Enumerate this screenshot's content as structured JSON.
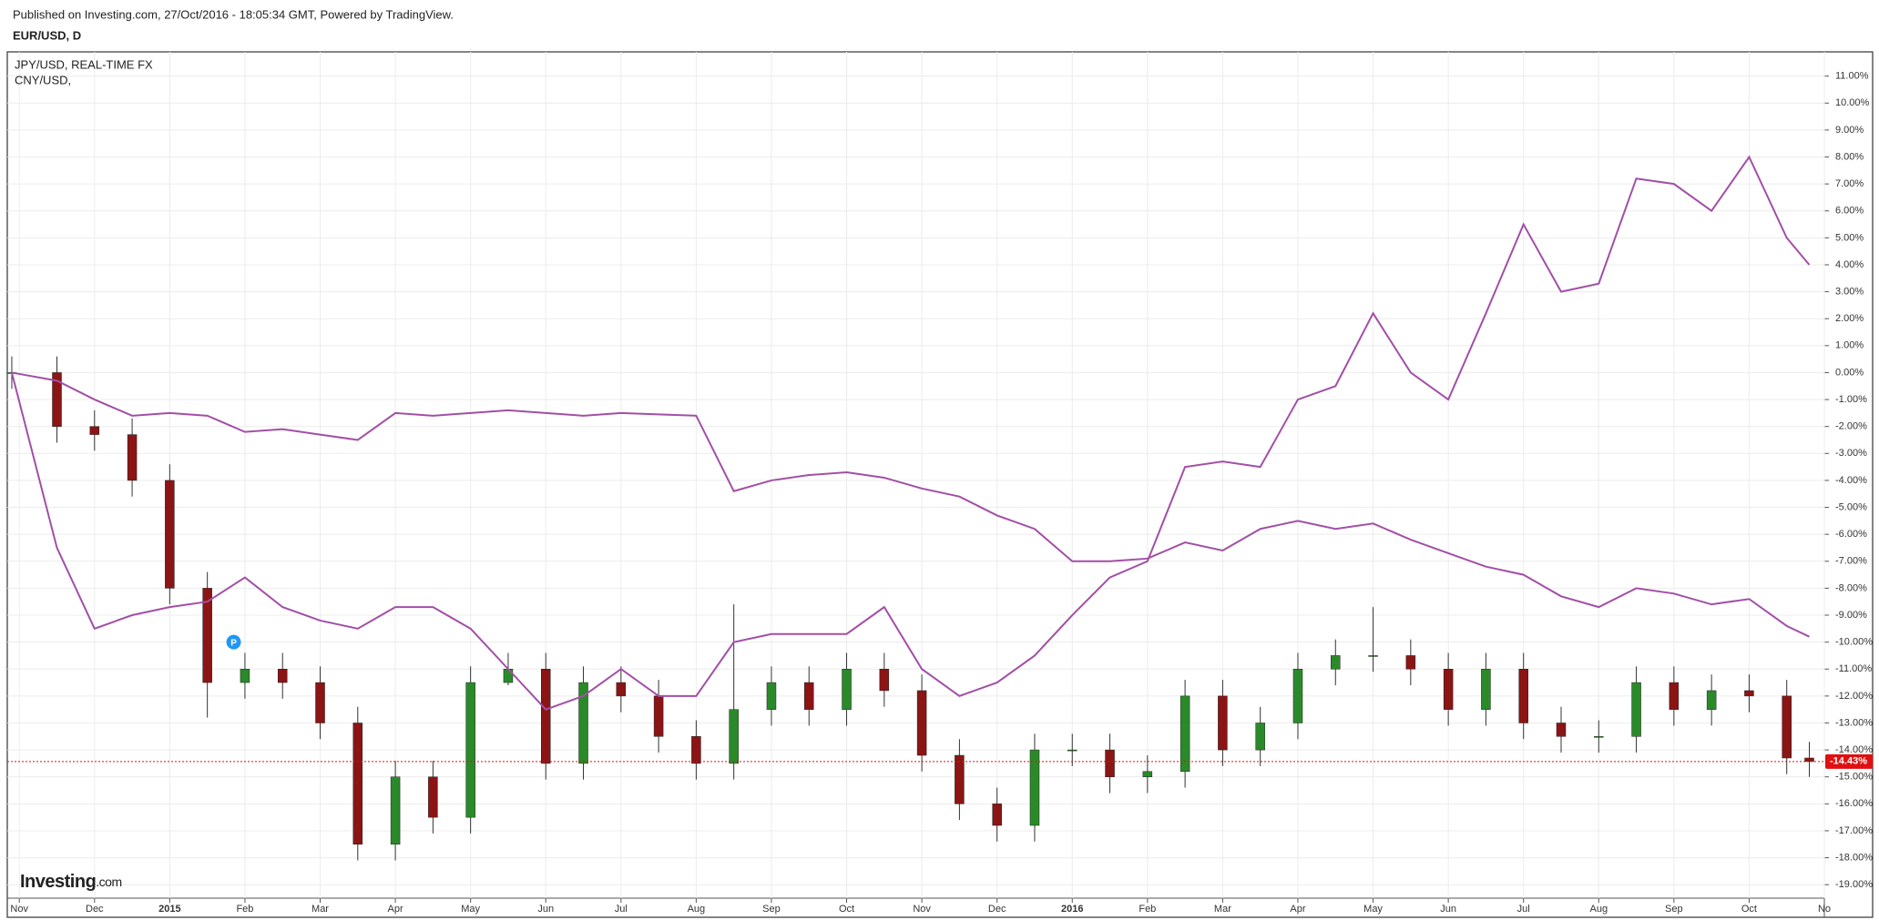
{
  "header": {
    "published": "Published on Investing.com, 27/Oct/2016 - 18:05:34 GMT, Powered by TradingView.",
    "symbol": "EUR/USD, D"
  },
  "logo": {
    "brand": "Investing",
    "suffix": ".com"
  },
  "chart_data": {
    "type": "candlestick",
    "x": [
      -0.1,
      0.5,
      1,
      1.5,
      2,
      2.5,
      3,
      3.5,
      4,
      4.5,
      5,
      5.5,
      6,
      6.5,
      7,
      7.5,
      8,
      8.5,
      9,
      9.5,
      10,
      10.5,
      11,
      11.5,
      12,
      12.5,
      13,
      13.5,
      14,
      14.5,
      15,
      15.5,
      16,
      16.5,
      17,
      17.5,
      18,
      18.5,
      19,
      19.5,
      20,
      20.5,
      21,
      21.5,
      22,
      22.5,
      23,
      23.5,
      23.8
    ],
    "xlim": [
      -0.16,
      24
    ],
    "xticks": [
      {
        "value": 0,
        "label": "Nov"
      },
      {
        "value": 1,
        "label": "Dec"
      },
      {
        "value": 2,
        "label": "2015"
      },
      {
        "value": 3,
        "label": "Feb"
      },
      {
        "value": 4,
        "label": "Mar"
      },
      {
        "value": 5,
        "label": "Apr"
      },
      {
        "value": 6,
        "label": "May"
      },
      {
        "value": 7,
        "label": "Jun"
      },
      {
        "value": 8,
        "label": "Jul"
      },
      {
        "value": 9,
        "label": "Aug"
      },
      {
        "value": 10,
        "label": "Sep"
      },
      {
        "value": 11,
        "label": "Oct"
      },
      {
        "value": 12,
        "label": "Nov"
      },
      {
        "value": 13,
        "label": "Dec"
      },
      {
        "value": 14,
        "label": "2016"
      },
      {
        "value": 15,
        "label": "Feb"
      },
      {
        "value": 16,
        "label": "Mar"
      },
      {
        "value": 17,
        "label": "Apr"
      },
      {
        "value": 18,
        "label": "May"
      },
      {
        "value": 19,
        "label": "Jun"
      },
      {
        "value": 20,
        "label": "Jul"
      },
      {
        "value": 21,
        "label": "Aug"
      },
      {
        "value": 22,
        "label": "Sep"
      },
      {
        "value": 23,
        "label": "Oct"
      },
      {
        "value": 24,
        "label": "No"
      }
    ],
    "ylim": [
      -19.5,
      11.9
    ],
    "yticks": [
      {
        "value": 11,
        "label": "11.00%"
      },
      {
        "value": 10,
        "label": "10.00%"
      },
      {
        "value": 9,
        "label": "9.00%"
      },
      {
        "value": 8,
        "label": "8.00%"
      },
      {
        "value": 7,
        "label": "7.00%"
      },
      {
        "value": 6,
        "label": "6.00%"
      },
      {
        "value": 5,
        "label": "5.00%"
      },
      {
        "value": 4,
        "label": "4.00%"
      },
      {
        "value": 3,
        "label": "3.00%"
      },
      {
        "value": 2,
        "label": "2.00%"
      },
      {
        "value": 1,
        "label": "1.00%"
      },
      {
        "value": 0,
        "label": "0.00%"
      },
      {
        "value": -1,
        "label": "-1.00%"
      },
      {
        "value": -2,
        "label": "-2.00%"
      },
      {
        "value": -3,
        "label": "-3.00%"
      },
      {
        "value": -4,
        "label": "-4.00%"
      },
      {
        "value": -5,
        "label": "-5.00%"
      },
      {
        "value": -6,
        "label": "-6.00%"
      },
      {
        "value": -7,
        "label": "-7.00%"
      },
      {
        "value": -8,
        "label": "-8.00%"
      },
      {
        "value": -9,
        "label": "-9.00%"
      },
      {
        "value": -10,
        "label": "-10.00%"
      },
      {
        "value": -11,
        "label": "-11.00%"
      },
      {
        "value": -12,
        "label": "-12.00%"
      },
      {
        "value": -13,
        "label": "-13.00%"
      },
      {
        "value": -14,
        "label": "-14.00%"
      },
      {
        "value": -15,
        "label": "-15.00%"
      },
      {
        "value": -16,
        "label": "-16.00%"
      },
      {
        "value": -17,
        "label": "-17.00%"
      },
      {
        "value": -18,
        "label": "-18.00%"
      },
      {
        "value": -19,
        "label": "-19.00%"
      }
    ],
    "grid": true,
    "candles": {
      "name": "EUR/USD, D",
      "up_color": "#2a8a2a",
      "down_color": "#8b1414",
      "open": [
        0,
        0,
        -2,
        -2.3,
        -4,
        -8,
        -11.5,
        -11,
        -11.5,
        -13,
        -17.5,
        -15,
        -16.5,
        -11.5,
        -11,
        -14.5,
        -11.5,
        -12,
        -13.5,
        -14.5,
        -12.5,
        -11.5,
        -12.5,
        -11,
        -11.8,
        -14.2,
        -16,
        -16.8,
        -14,
        -14,
        -15,
        -14.8,
        -12,
        -14,
        -13,
        -11,
        -10.5,
        -10.5,
        -11,
        -12.5,
        -11,
        -13,
        -13.5,
        -13.5,
        -11.5,
        -12.5,
        -11.8,
        -12,
        -14.3
      ],
      "high": [
        0.6,
        0.6,
        -1.4,
        -1.7,
        -3.4,
        -7.4,
        -10.4,
        -10.4,
        -10.9,
        -12.4,
        -14.4,
        -14.4,
        -10.9,
        -10.4,
        -10.4,
        -10.9,
        -10.9,
        -11.4,
        -12.9,
        -8.6,
        -10.9,
        -10.9,
        -10.4,
        -10.4,
        -11.2,
        -13.6,
        -15.4,
        -13.4,
        -13.4,
        -13.4,
        -14.2,
        -11.4,
        -11.4,
        -12.4,
        -10.4,
        -9.9,
        -8.7,
        -9.9,
        -10.4,
        -10.4,
        -10.4,
        -12.4,
        -12.9,
        -10.9,
        -10.9,
        -11.2,
        -11.2,
        -11.4,
        -13.7
      ],
      "low": [
        -0.6,
        -2.6,
        -2.9,
        -4.6,
        -8.6,
        -12.8,
        -12.1,
        -12.1,
        -13.6,
        -18.1,
        -18.1,
        -17.1,
        -17.1,
        -11.6,
        -15.1,
        -15.1,
        -12.6,
        -14.1,
        -15.1,
        -15.1,
        -13.1,
        -13.1,
        -13.1,
        -12.4,
        -14.8,
        -16.6,
        -17.4,
        -17.4,
        -14.6,
        -15.6,
        -15.6,
        -15.4,
        -14.6,
        -14.6,
        -13.6,
        -11.6,
        -11.1,
        -11.6,
        -13.1,
        -13.1,
        -13.6,
        -14.1,
        -14.1,
        -14.1,
        -13.1,
        -13.1,
        -12.6,
        -14.9,
        -15.0
      ],
      "close": [
        0,
        -2,
        -2.3,
        -4,
        -8,
        -11.5,
        -11,
        -11.5,
        -13,
        -17.5,
        -15,
        -16.5,
        -11.5,
        -11,
        -14.5,
        -11.5,
        -12,
        -13.5,
        -14.5,
        -12.5,
        -11.5,
        -12.5,
        -11,
        -11.8,
        -14.2,
        -16,
        -16.8,
        -14,
        -14,
        -15,
        -14.8,
        -12,
        -14,
        -13,
        -11,
        -10.5,
        -10.5,
        -11,
        -12.5,
        -11,
        -13,
        -13.5,
        -13.5,
        -11.5,
        -12.5,
        -11.8,
        -12,
        -14.3,
        -14.43
      ]
    },
    "series": [
      {
        "name": "JPY/USD, REAL-TIME FX",
        "color": "#a24fa6",
        "values": [
          0,
          -6.5,
          -9.5,
          -9,
          -8.7,
          -8.5,
          -7.6,
          -8.7,
          -9.2,
          -9.5,
          -8.7,
          -8.7,
          -9.5,
          -11,
          -12.5,
          -12,
          -11,
          -12,
          -12,
          -10,
          -9.7,
          -9.7,
          -9.7,
          -8.7,
          -11,
          -12,
          -11.5,
          -10.5,
          -9,
          -7.6,
          -7,
          -3.5,
          -3.3,
          -3.5,
          -1,
          -0.5,
          2.2,
          0,
          -1,
          2.2,
          5.5,
          3,
          3.3,
          7.2,
          7,
          6,
          8,
          5,
          4
        ]
      },
      {
        "name": "CNY/USD,",
        "color": "#a24fa6",
        "values": [
          0,
          -0.3,
          -1,
          -1.6,
          -1.5,
          -1.6,
          -2.2,
          -2.1,
          -2.3,
          -2.5,
          -1.5,
          -1.6,
          -1.5,
          -1.4,
          -1.5,
          -1.6,
          -1.5,
          -1.55,
          -1.6,
          -4.4,
          -4,
          -3.8,
          -3.7,
          -3.9,
          -4.3,
          -4.6,
          -5.3,
          -5.8,
          -7,
          -7,
          -6.9,
          -6.3,
          -6.6,
          -5.8,
          -5.5,
          -5.8,
          -5.6,
          -6.2,
          -6.7,
          -7.2,
          -7.5,
          -8.3,
          -8.7,
          -8,
          -8.2,
          -8.6,
          -8.4,
          -9.4,
          -9.8
        ]
      }
    ],
    "last_value": {
      "value": -14.43,
      "label": "-14.43%",
      "color": "#e01010"
    },
    "annotations": [
      {
        "text": "P",
        "x": 2.85,
        "y": -10,
        "color": "#2196f3"
      }
    ]
  }
}
